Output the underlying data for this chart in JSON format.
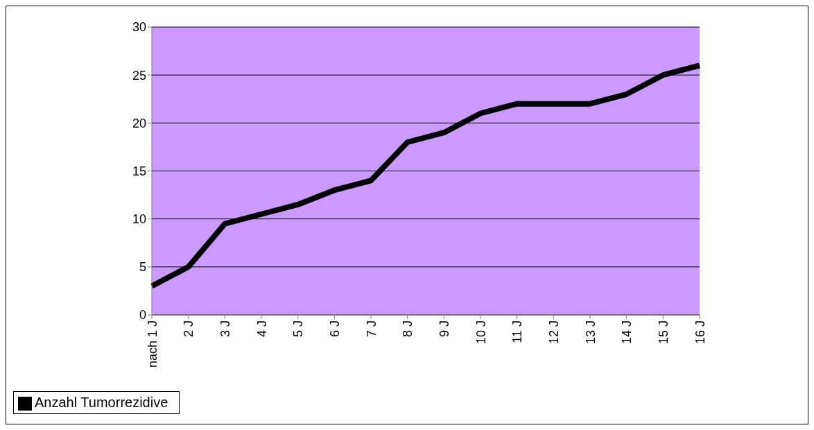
{
  "chart_data": {
    "type": "line",
    "categories": [
      "nach 1 J",
      "2 J",
      "3 J",
      "4 J",
      "5 J",
      "6 J",
      "7 J",
      "8 J",
      "9 J",
      "10 J",
      "11 J",
      "12 J",
      "13 J",
      "14 J",
      "15 J",
      "16 J"
    ],
    "series": [
      {
        "name": "Anzahl Tumorrezidive",
        "color": "#000000",
        "values": [
          3,
          5,
          9.5,
          10.5,
          11.5,
          13,
          14,
          18,
          19,
          21,
          22,
          22,
          22,
          23,
          25,
          26
        ]
      }
    ],
    "ylim": [
      0,
      30
    ],
    "yticks": [
      0,
      5,
      10,
      15,
      20,
      25,
      30
    ],
    "grid": "y",
    "legend": "bottom left",
    "marker": "none",
    "line_style": "solid"
  }
}
